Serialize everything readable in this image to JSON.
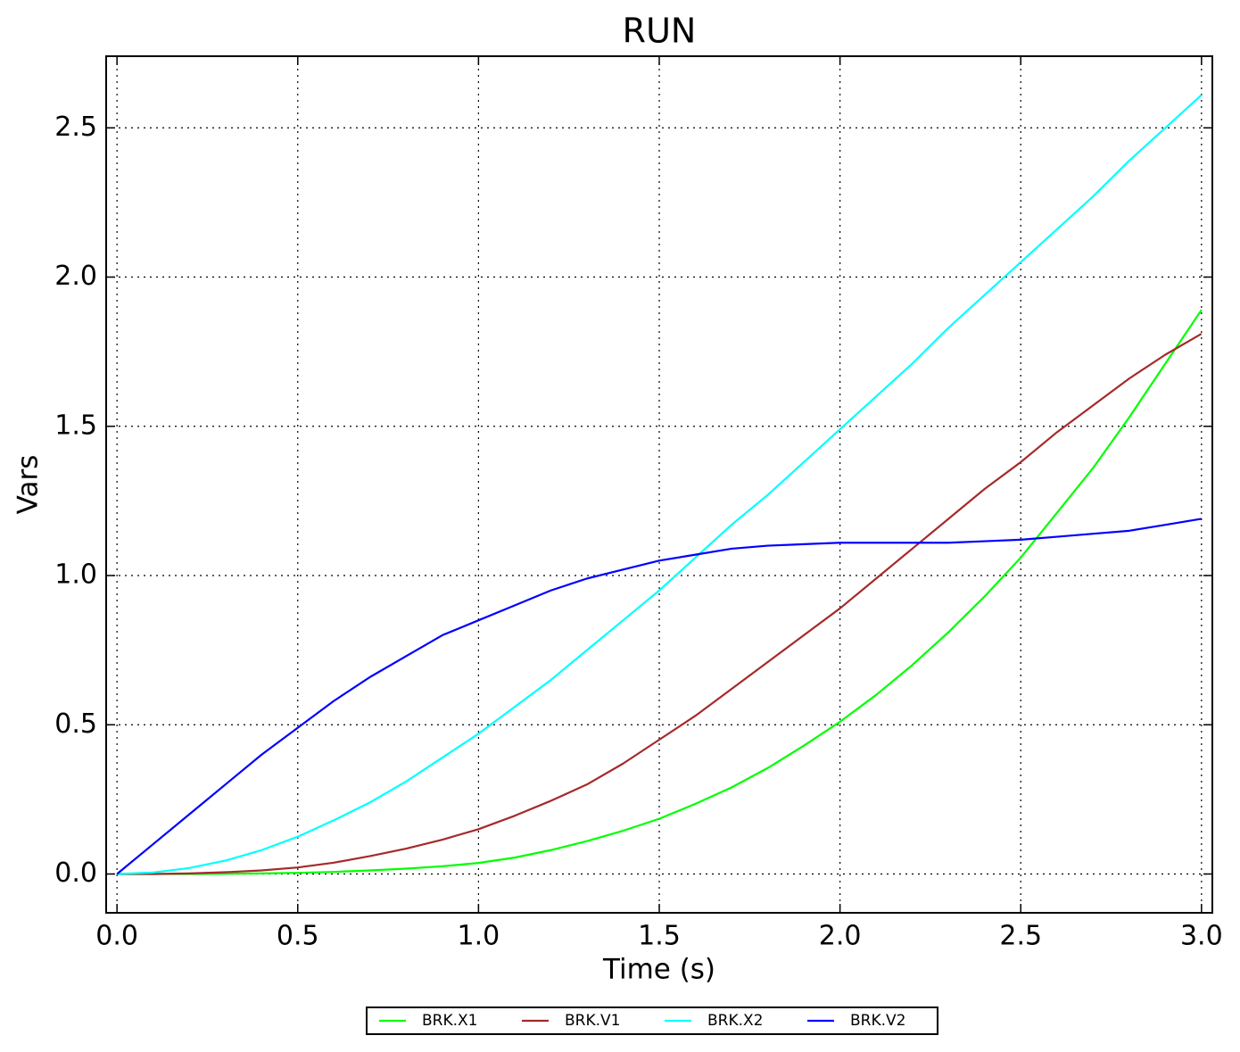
{
  "chart_data": {
    "type": "line",
    "title": "RUN",
    "x_label": "Time (s)",
    "y_label": "Vars",
    "x": [
      0,
      0.1,
      0.2,
      0.3,
      0.4,
      0.5,
      0.6,
      0.7,
      0.8,
      0.9,
      1.0,
      1.1,
      1.2,
      1.3,
      1.4,
      1.5,
      1.6,
      1.7,
      1.8,
      1.9,
      2.0,
      2.1,
      2.2,
      2.3,
      2.4,
      2.5,
      2.6,
      2.7,
      2.8,
      2.9,
      3.0
    ],
    "series": [
      {
        "name": "BRK.X1",
        "color": "#00ff00",
        "values": [
          0,
          0,
          0,
          0.001,
          0.002,
          0.004,
          0.007,
          0.012,
          0.018,
          0.026,
          0.037,
          0.055,
          0.08,
          0.11,
          0.145,
          0.185,
          0.235,
          0.29,
          0.355,
          0.43,
          0.51,
          0.6,
          0.7,
          0.81,
          0.93,
          1.06,
          1.21,
          1.36,
          1.53,
          1.71,
          1.89
        ]
      },
      {
        "name": "BRK.V1",
        "color": "#a52a2a",
        "values": [
          0,
          0,
          0.002,
          0.006,
          0.012,
          0.022,
          0.038,
          0.06,
          0.085,
          0.115,
          0.15,
          0.195,
          0.245,
          0.3,
          0.37,
          0.45,
          0.53,
          0.62,
          0.71,
          0.8,
          0.89,
          0.99,
          1.09,
          1.19,
          1.29,
          1.38,
          1.48,
          1.57,
          1.66,
          1.74,
          1.81
        ]
      },
      {
        "name": "BRK.X2",
        "color": "#00ffff",
        "values": [
          0,
          0.005,
          0.02,
          0.045,
          0.08,
          0.125,
          0.18,
          0.24,
          0.31,
          0.39,
          0.47,
          0.56,
          0.65,
          0.75,
          0.85,
          0.95,
          1.06,
          1.17,
          1.27,
          1.38,
          1.49,
          1.6,
          1.71,
          1.83,
          1.94,
          2.05,
          2.16,
          2.27,
          2.39,
          2.5,
          2.61
        ]
      },
      {
        "name": "BRK.V2",
        "color": "#0000ff",
        "values": [
          0,
          0.1,
          0.2,
          0.3,
          0.4,
          0.49,
          0.58,
          0.66,
          0.73,
          0.8,
          0.85,
          0.9,
          0.95,
          0.99,
          1.02,
          1.05,
          1.07,
          1.09,
          1.1,
          1.105,
          1.11,
          1.11,
          1.11,
          1.11,
          1.115,
          1.12,
          1.13,
          1.14,
          1.15,
          1.17,
          1.19
        ]
      }
    ],
    "xlim": [
      -0.03,
      3.03
    ],
    "ylim": [
      -0.13,
      2.74
    ],
    "xticks": [
      {
        "value": 0,
        "label": "0.0"
      },
      0.5,
      {
        "value": 1,
        "label": "1.0"
      },
      1.5,
      {
        "value": 2,
        "label": "2.0"
      },
      2.5,
      {
        "value": 3,
        "label": "3.0"
      }
    ],
    "yticks": [
      {
        "value": 0,
        "label": "0.0"
      },
      0.5,
      {
        "value": 1,
        "label": "1.0"
      },
      1.5,
      {
        "value": 2,
        "label": "2.0"
      },
      2.5
    ],
    "grid": true,
    "legend": "bottom"
  }
}
